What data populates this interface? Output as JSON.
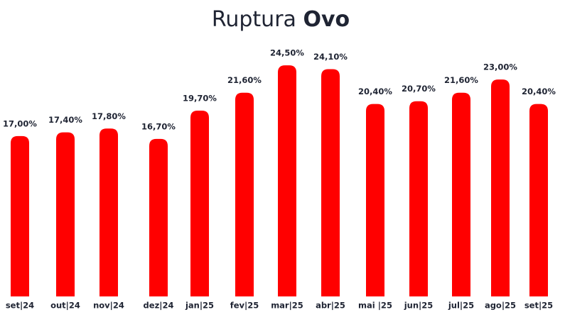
{
  "chart_data": {
    "type": "bar",
    "title": [
      "Ruptura",
      "Ovo"
    ],
    "categories": [
      "set|24",
      "out|24",
      "nov|24",
      "dez|24",
      "jan|25",
      "fev|25",
      "mar|25",
      "abr|25",
      "mai |25",
      "jun|25",
      "jul|25",
      "ago|25",
      "set|25"
    ],
    "values": [
      17.0,
      17.4,
      17.8,
      16.7,
      19.7,
      21.6,
      24.5,
      24.1,
      20.4,
      20.7,
      21.6,
      23.0,
      20.4
    ],
    "value_labels": [
      "17,00%",
      "17,40%",
      "17,80%",
      "16,70%",
      "19,70%",
      "21,60%",
      "24,50%",
      "24,10%",
      "20,40%",
      "20,70%",
      "21,60%",
      "23,00%",
      "20,40%"
    ],
    "color": "#ff0000"
  }
}
